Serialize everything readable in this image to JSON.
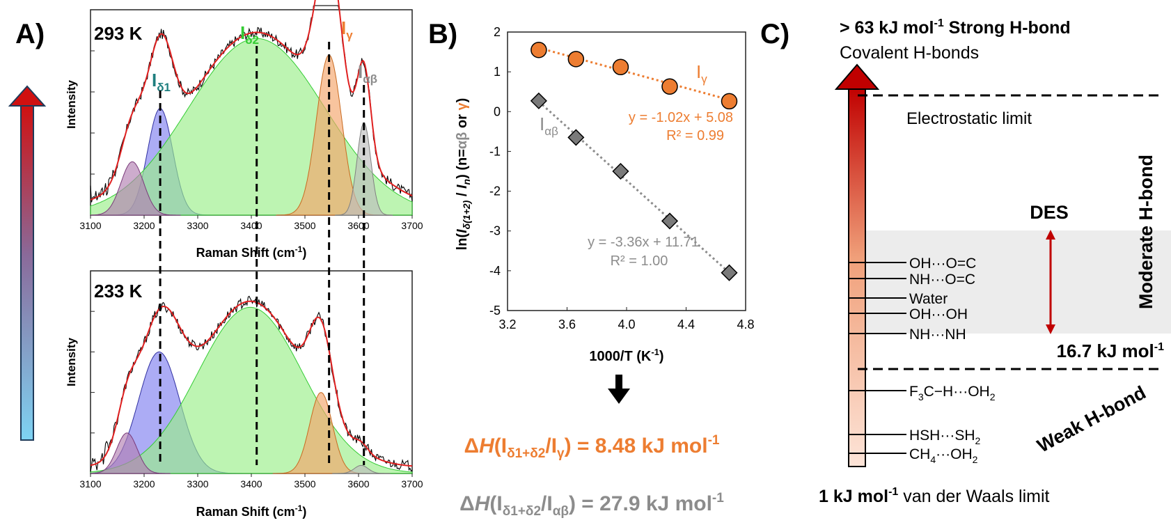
{
  "colors": {
    "orange": "#ed7d31",
    "gray": "#8c8c8c",
    "teal": "#1f7f7f",
    "green": "#33cc33",
    "red": "#c00000",
    "blue": "#5b9bd5",
    "fit_red": "#e02020",
    "fit_green": "#33cc33",
    "peak_purple": "#b27fb2",
    "peak_blue": "#8080f0",
    "peak_green": "#99ee88",
    "peak_orange": "#f5a56a",
    "peak_gray": "#bdbdbd"
  },
  "panelA": {
    "label": "A)",
    "top": {
      "temp": "293 K",
      "ylabel": "Intensity",
      "xlabel_main": "Raman Shift (cm",
      "xlabel_sup": "-1",
      "xlabel_end": ")"
    },
    "bottom": {
      "temp": "233 K",
      "ylabel": "Intensity",
      "xlabel_main": "Raman Shift (cm",
      "xlabel_sup": "-1",
      "xlabel_end": ")"
    },
    "peak_labels": {
      "d1": {
        "base": "I",
        "sub": "δ1"
      },
      "d2": {
        "base": "I",
        "sub": "δ2"
      },
      "g": {
        "base": "I",
        "sub": "γ"
      },
      "ab": {
        "base": "I",
        "sub": "αβ"
      }
    },
    "xticks": [
      "3100",
      "3200",
      "3300",
      "3400",
      "3500",
      "3600",
      "3700"
    ]
  },
  "panelB": {
    "label": "B)",
    "ylabel_parts": [
      "ln(",
      "I",
      "δ(1+2)",
      " / ",
      "I",
      "n",
      ") (n=",
      "αβ",
      " or ",
      "γ",
      ")"
    ],
    "xlabel_main": "1000/T (K",
    "xlabel_sup": "-1",
    "xlabel_end": ")",
    "xticks": [
      "3.2",
      "3.6",
      "4.0",
      "4.4",
      "4.8"
    ],
    "yticks": [
      "2",
      "1",
      "0",
      "-1",
      "-2",
      "-3",
      "-4",
      "-5"
    ],
    "series_gamma_label": {
      "base": "I",
      "sub": "γ"
    },
    "series_ab_label": {
      "base": "I",
      "sub": "αβ"
    },
    "eq_gamma": "y = -1.02x + 5.08",
    "r2_gamma": "R² = 0.99",
    "eq_ab": "y = -3.36x + 11.71",
    "r2_ab": "R² = 1.00",
    "arrow": "↓",
    "dh1_pre": "Δ",
    "dh1_H": "H",
    "dh1_open": "(I",
    "dh1_sub1": "δ1+δ2",
    "dh1_mid": "/I",
    "dh1_sub2": "γ",
    "dh1_val": ") = 8.48 kJ mol",
    "dh1_sup": "-1",
    "dh2_pre": "Δ",
    "dh2_H": "H",
    "dh2_open": "(I",
    "dh2_sub1": "δ1+δ2",
    "dh2_mid": "/I",
    "dh2_sub2": "αβ",
    "dh2_val": ") = 27.9 kJ mol",
    "dh2_sup": "-1"
  },
  "panelC": {
    "label": "C)",
    "top_line_a": "> 63 kJ mol",
    "top_line_sup": "-1",
    "top_line_b": " Strong H-bond",
    "top_line2": "Covalent H-bonds",
    "electrostatic": "Electrostatic limit",
    "des": "DES",
    "moderate": "Moderate H-bond",
    "weak": "Weak H-bond",
    "mid_energy": "16.7 kJ mol",
    "mid_energy_sup": "-1",
    "bottom_a": "1 kJ mol",
    "bottom_sup": "-1",
    "bottom_b": " van der Waals limit",
    "levels": [
      "OH···O=C",
      "NH···O=C",
      "Water",
      "OH···OH",
      "NH···NH"
    ],
    "weak_levels": [
      {
        "a": "F",
        "s1": "3",
        "b": "C−H···OH",
        "s2": "2"
      },
      {
        "a": "HSH···SH",
        "s1": "2",
        "b": "",
        "s2": ""
      },
      {
        "a": "CH",
        "s1": "4",
        "b": "···OH",
        "s2": "2"
      }
    ]
  },
  "chart_data": [
    {
      "type": "area",
      "title": "293 K",
      "xlabel": "Raman Shift (cm-1)",
      "ylabel": "Intensity",
      "xlim": [
        3100,
        3700
      ],
      "peaks": [
        {
          "name": "Iδ1",
          "center": 3230,
          "height": 0.52,
          "fwhm": 55
        },
        {
          "name": "Iδ2",
          "center": 3410,
          "height": 0.86,
          "fwhm": 300
        },
        {
          "name": "Iγ",
          "center": 3545,
          "height": 0.78,
          "fwhm": 55
        },
        {
          "name": "Iαβ",
          "center": 3610,
          "height": 0.45,
          "fwhm": 30
        },
        {
          "name": "",
          "center": 3178,
          "height": 0.26,
          "fwhm": 50
        }
      ]
    },
    {
      "type": "area",
      "title": "233 K",
      "xlabel": "Raman Shift (cm-1)",
      "ylabel": "Intensity",
      "xlim": [
        3100,
        3700
      ],
      "peaks": [
        {
          "name": "Iδ1",
          "center": 3228,
          "height": 0.6,
          "fwhm": 90
        },
        {
          "name": "Iδ2",
          "center": 3398,
          "height": 0.82,
          "fwhm": 230
        },
        {
          "name": "Iγ",
          "center": 3530,
          "height": 0.4,
          "fwhm": 50
        },
        {
          "name": "",
          "center": 3168,
          "height": 0.2,
          "fwhm": 45
        },
        {
          "name": "Iαβ",
          "center": 3605,
          "height": 0.04,
          "fwhm": 30
        }
      ]
    },
    {
      "type": "scatter",
      "xlabel": "1000/T (K-1)",
      "ylabel": "ln(Iδ(1+2) / In) (n=αβ or γ)",
      "xlim": [
        3.2,
        4.8
      ],
      "ylim": [
        -5,
        2
      ],
      "series": [
        {
          "name": "Iγ",
          "x": [
            3.41,
            3.66,
            3.96,
            4.29,
            4.69
          ],
          "y": [
            1.55,
            1.32,
            1.12,
            0.63,
            0.26
          ],
          "fit": {
            "slope": -1.02,
            "intercept": 5.08
          }
        },
        {
          "name": "Iαβ",
          "x": [
            3.41,
            3.66,
            3.96,
            4.29,
            4.69
          ],
          "y": [
            0.27,
            -0.65,
            -1.5,
            -2.75,
            -4.05
          ],
          "fit": {
            "slope": -3.36,
            "intercept": 11.71
          }
        }
      ]
    }
  ]
}
